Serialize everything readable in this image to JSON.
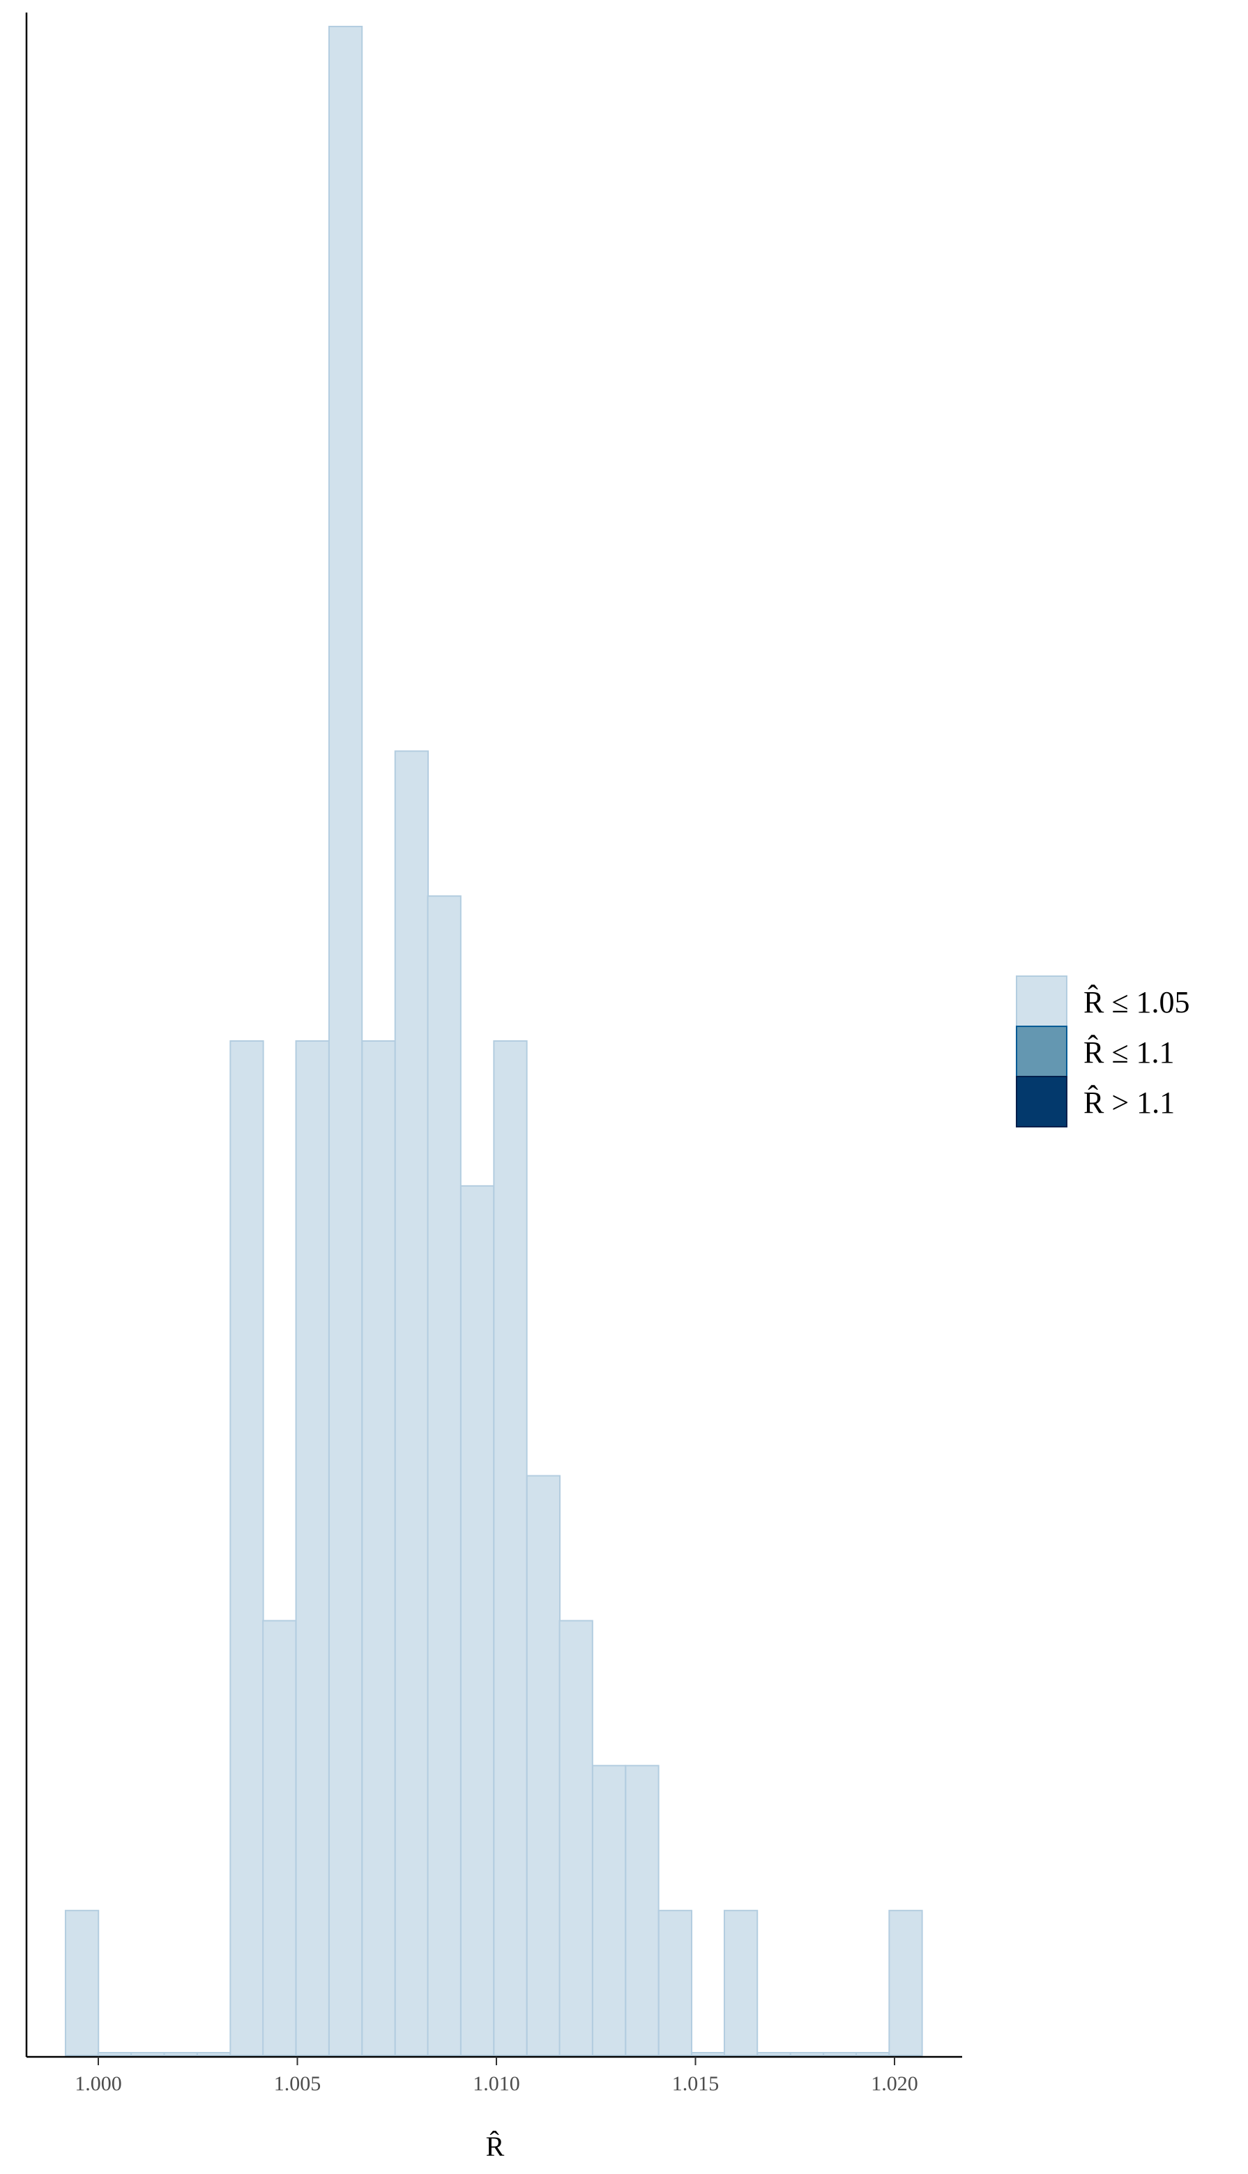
{
  "chart_data": {
    "type": "bar",
    "title": "",
    "xlabel": "R̂",
    "ylabel": "",
    "xlim": [
      0.9975,
      1.0215
    ],
    "x_ticks": [
      "1.000",
      "1.005",
      "1.010",
      "1.015",
      "1.020"
    ],
    "bin_width": 0.000828,
    "bins": [
      {
        "x": 0.99959,
        "count": 1
      },
      {
        "x": 1.00041,
        "count": 0
      },
      {
        "x": 1.00124,
        "count": 0
      },
      {
        "x": 1.00207,
        "count": 0
      },
      {
        "x": 1.0029,
        "count": 0
      },
      {
        "x": 1.00373,
        "count": 7
      },
      {
        "x": 1.00455,
        "count": 3
      },
      {
        "x": 1.00538,
        "count": 7
      },
      {
        "x": 1.00621,
        "count": 14
      },
      {
        "x": 1.00704,
        "count": 7
      },
      {
        "x": 1.00787,
        "count": 9
      },
      {
        "x": 1.00869,
        "count": 8
      },
      {
        "x": 1.00952,
        "count": 6
      },
      {
        "x": 1.01035,
        "count": 7
      },
      {
        "x": 1.01118,
        "count": 4
      },
      {
        "x": 1.012,
        "count": 3
      },
      {
        "x": 1.01283,
        "count": 2
      },
      {
        "x": 1.01366,
        "count": 2
      },
      {
        "x": 1.01449,
        "count": 1
      },
      {
        "x": 1.01532,
        "count": 0
      },
      {
        "x": 1.01614,
        "count": 1
      },
      {
        "x": 1.01697,
        "count": 0
      },
      {
        "x": 1.0178,
        "count": 0
      },
      {
        "x": 1.01863,
        "count": 0
      },
      {
        "x": 1.01945,
        "count": 0
      },
      {
        "x": 1.02028,
        "count": 1
      }
    ],
    "ymax": 14,
    "bar_fill": "#d1e1ec",
    "bar_stroke": "#b3cde0",
    "legend": {
      "placement": "right",
      "items": [
        {
          "label": "R̂ ≤ 1.05",
          "color": "#d1e1ec",
          "border": "#b3cde0"
        },
        {
          "label": "R̂ ≤ 1.1",
          "color": "#6497b1",
          "border": "#005b96"
        },
        {
          "label": "R̂ > 1.1",
          "color": "#03396c",
          "border": "#011f4b"
        }
      ]
    }
  }
}
